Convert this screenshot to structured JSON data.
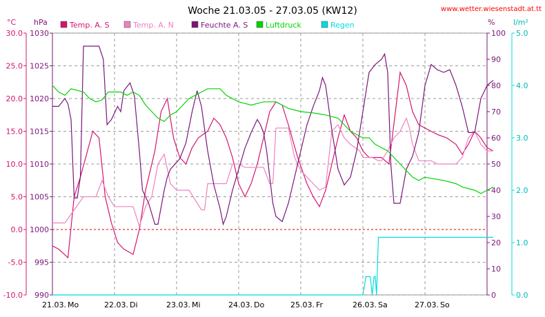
{
  "title": "Woche 21.03.05 - 27.03.05 (KW12)",
  "source_url": "www.wetter.wiesenstadt.at.tt",
  "colors": {
    "temp_s": "#d4146e",
    "temp_n": "#f080c0",
    "humidity": "#7a167a",
    "pressure": "#00d400",
    "rain": "#00dcdc",
    "grid": "#999999",
    "zero": "#cc0000"
  },
  "chart_data": {
    "type": "line",
    "x_ticks": [
      "21.03.",
      "22.03.",
      "23.03.",
      "24.03.",
      "25.03.",
      "26.03.",
      "27.03."
    ],
    "x_days": [
      "Mo",
      "Di",
      "Mi",
      "Do",
      "Fr",
      "Sa",
      "So"
    ],
    "axes": {
      "temperature": {
        "unit": "°C",
        "ylim": [
          -10,
          30
        ],
        "ticks": [
          "30.0",
          "25.0",
          "20.0",
          "15.0",
          "10.0",
          "5.0",
          "0.0",
          "-5.0",
          "-10.0"
        ]
      },
      "pressure": {
        "unit": "hPa",
        "ylim": [
          990,
          1030
        ],
        "ticks": [
          "1030",
          "1025",
          "1020",
          "1015",
          "1010",
          "1005",
          "1000",
          "995",
          "990"
        ]
      },
      "humidity": {
        "unit": "%",
        "ylim": [
          0,
          100
        ],
        "ticks": [
          "100",
          "90",
          "80",
          "70",
          "60",
          "50",
          "40",
          "30",
          "20",
          "10",
          "0"
        ]
      },
      "rain": {
        "unit": "l/m²",
        "ylim": [
          0,
          5
        ],
        "ticks": [
          "5.0",
          "4.0",
          "3.0",
          "2.0",
          "1.0",
          "0.0"
        ]
      }
    },
    "grid": true,
    "series": [
      {
        "name": "Temp. A. S",
        "key": "temp_s",
        "axis": "temperature",
        "points": [
          [
            0,
            -2.5
          ],
          [
            0.1,
            -3
          ],
          [
            0.25,
            -4.3
          ],
          [
            0.35,
            5
          ],
          [
            0.45,
            8
          ],
          [
            0.55,
            11.5
          ],
          [
            0.65,
            15
          ],
          [
            0.75,
            14
          ],
          [
            0.85,
            5
          ],
          [
            0.95,
            1
          ],
          [
            1.05,
            -2
          ],
          [
            1.15,
            -3
          ],
          [
            1.3,
            -3.8
          ],
          [
            1.4,
            0
          ],
          [
            1.5,
            6
          ],
          [
            1.65,
            12
          ],
          [
            1.75,
            18
          ],
          [
            1.85,
            20
          ],
          [
            1.95,
            14
          ],
          [
            2.05,
            11
          ],
          [
            2.15,
            10
          ],
          [
            2.25,
            12.5
          ],
          [
            2.35,
            14
          ],
          [
            2.5,
            15
          ],
          [
            2.6,
            17
          ],
          [
            2.7,
            16
          ],
          [
            2.8,
            14
          ],
          [
            2.9,
            11
          ],
          [
            3.0,
            7
          ],
          [
            3.1,
            5
          ],
          [
            3.2,
            7
          ],
          [
            3.3,
            10
          ],
          [
            3.4,
            14
          ],
          [
            3.5,
            18
          ],
          [
            3.6,
            19.5
          ],
          [
            3.7,
            19
          ],
          [
            3.8,
            16
          ],
          [
            3.95,
            11
          ],
          [
            4.1,
            7
          ],
          [
            4.2,
            5
          ],
          [
            4.3,
            3.5
          ],
          [
            4.4,
            6
          ],
          [
            4.5,
            10
          ],
          [
            4.6,
            14
          ],
          [
            4.7,
            17.5
          ],
          [
            4.8,
            15
          ],
          [
            4.9,
            14
          ],
          [
            5.0,
            12
          ],
          [
            5.1,
            11
          ],
          [
            5.2,
            11
          ],
          [
            5.3,
            11
          ],
          [
            5.42,
            10
          ],
          [
            5.55,
            20
          ],
          [
            5.6,
            24
          ],
          [
            5.7,
            22
          ],
          [
            5.8,
            18
          ],
          [
            5.9,
            16
          ],
          [
            6.0,
            15.5
          ],
          [
            6.1,
            15
          ],
          [
            6.2,
            14.5
          ],
          [
            6.35,
            14
          ],
          [
            6.5,
            13
          ],
          [
            6.6,
            11.5
          ],
          [
            6.7,
            13
          ],
          [
            6.8,
            15
          ],
          [
            6.9,
            14
          ],
          [
            7.0,
            12.5
          ],
          [
            7.1,
            12
          ]
        ]
      },
      {
        "name": "Temp. A. N",
        "key": "temp_n",
        "axis": "temperature",
        "points": [
          [
            0,
            1
          ],
          [
            0.2,
            1
          ],
          [
            0.35,
            3
          ],
          [
            0.5,
            5
          ],
          [
            0.7,
            5
          ],
          [
            0.8,
            7.5
          ],
          [
            0.9,
            5
          ],
          [
            1.0,
            3.5
          ],
          [
            1.3,
            3.5
          ],
          [
            1.4,
            0.5
          ],
          [
            1.5,
            3.5
          ],
          [
            1.6,
            5
          ],
          [
            1.7,
            10
          ],
          [
            1.8,
            11.5
          ],
          [
            1.9,
            7
          ],
          [
            2.0,
            6
          ],
          [
            2.2,
            6
          ],
          [
            2.3,
            4.5
          ],
          [
            2.4,
            3
          ],
          [
            2.45,
            3
          ],
          [
            2.5,
            7
          ],
          [
            2.8,
            7
          ],
          [
            2.9,
            10
          ],
          [
            3.0,
            10
          ],
          [
            3.1,
            9.5
          ],
          [
            3.4,
            9.5
          ],
          [
            3.5,
            7
          ],
          [
            3.55,
            7
          ],
          [
            3.6,
            15.5
          ],
          [
            3.8,
            15.5
          ],
          [
            3.9,
            11
          ],
          [
            4.0,
            9
          ],
          [
            4.2,
            7
          ],
          [
            4.3,
            6
          ],
          [
            4.4,
            6.5
          ],
          [
            4.5,
            15
          ],
          [
            4.6,
            16
          ],
          [
            4.7,
            14
          ],
          [
            4.8,
            13
          ],
          [
            4.95,
            12
          ],
          [
            5.0,
            11
          ],
          [
            5.15,
            11
          ],
          [
            5.25,
            10.5
          ],
          [
            5.3,
            10.5
          ],
          [
            5.4,
            12
          ],
          [
            5.5,
            14
          ],
          [
            5.6,
            15
          ],
          [
            5.7,
            17
          ],
          [
            5.75,
            15.5
          ],
          [
            5.8,
            13
          ],
          [
            5.9,
            10.5
          ],
          [
            6.1,
            10.5
          ],
          [
            6.2,
            10
          ],
          [
            6.5,
            10
          ],
          [
            6.6,
            11
          ],
          [
            6.7,
            14
          ],
          [
            6.8,
            15
          ],
          [
            6.9,
            13
          ],
          [
            7.0,
            12
          ],
          [
            7.1,
            12
          ]
        ]
      },
      {
        "name": "Feuchte A. S",
        "key": "humidity",
        "axis": "humidity",
        "points": [
          [
            0,
            72
          ],
          [
            0.1,
            72
          ],
          [
            0.2,
            75
          ],
          [
            0.25,
            73
          ],
          [
            0.3,
            67
          ],
          [
            0.35,
            37
          ],
          [
            0.4,
            37
          ],
          [
            0.45,
            45
          ],
          [
            0.5,
            95
          ],
          [
            0.55,
            95
          ],
          [
            0.65,
            95
          ],
          [
            0.75,
            95
          ],
          [
            0.82,
            90
          ],
          [
            0.88,
            65
          ],
          [
            0.95,
            67
          ],
          [
            1.05,
            72
          ],
          [
            1.1,
            70
          ],
          [
            1.15,
            78
          ],
          [
            1.25,
            81
          ],
          [
            1.32,
            76
          ],
          [
            1.4,
            55
          ],
          [
            1.45,
            40
          ],
          [
            1.55,
            35
          ],
          [
            1.65,
            27
          ],
          [
            1.7,
            27
          ],
          [
            1.8,
            40
          ],
          [
            1.85,
            45
          ],
          [
            1.9,
            48
          ],
          [
            2.05,
            52
          ],
          [
            2.15,
            58
          ],
          [
            2.25,
            70
          ],
          [
            2.33,
            78
          ],
          [
            2.4,
            72
          ],
          [
            2.5,
            55
          ],
          [
            2.6,
            42
          ],
          [
            2.7,
            33
          ],
          [
            2.75,
            27
          ],
          [
            2.8,
            30
          ],
          [
            2.9,
            40
          ],
          [
            3.0,
            48
          ],
          [
            3.1,
            56
          ],
          [
            3.2,
            62
          ],
          [
            3.3,
            67
          ],
          [
            3.35,
            65
          ],
          [
            3.4,
            62
          ],
          [
            3.45,
            55
          ],
          [
            3.5,
            45
          ],
          [
            3.55,
            35
          ],
          [
            3.6,
            30
          ],
          [
            3.7,
            28
          ],
          [
            3.8,
            35
          ],
          [
            3.9,
            45
          ],
          [
            4.0,
            55
          ],
          [
            4.1,
            65
          ],
          [
            4.2,
            72
          ],
          [
            4.3,
            78
          ],
          [
            4.35,
            83
          ],
          [
            4.4,
            80
          ],
          [
            4.5,
            63
          ],
          [
            4.6,
            48
          ],
          [
            4.7,
            42
          ],
          [
            4.8,
            45
          ],
          [
            4.9,
            55
          ],
          [
            5.0,
            70
          ],
          [
            5.1,
            85
          ],
          [
            5.2,
            88
          ],
          [
            5.3,
            90
          ],
          [
            5.35,
            92
          ],
          [
            5.4,
            85
          ],
          [
            5.45,
            50
          ],
          [
            5.5,
            35
          ],
          [
            5.6,
            35
          ],
          [
            5.7,
            48
          ],
          [
            5.8,
            53
          ],
          [
            5.9,
            62
          ],
          [
            6.0,
            80
          ],
          [
            6.1,
            88
          ],
          [
            6.2,
            86
          ],
          [
            6.3,
            85
          ],
          [
            6.4,
            86
          ],
          [
            6.5,
            80
          ],
          [
            6.6,
            72
          ],
          [
            6.7,
            62
          ],
          [
            6.8,
            62
          ],
          [
            6.9,
            75
          ],
          [
            7.0,
            80
          ],
          [
            7.1,
            82
          ]
        ]
      },
      {
        "name": "Luftdruck",
        "key": "pressure",
        "axis": "pressure",
        "points": [
          [
            0,
            1022
          ],
          [
            0.1,
            1021
          ],
          [
            0.2,
            1020.5
          ],
          [
            0.3,
            1021.5
          ],
          [
            0.5,
            1021
          ],
          [
            0.6,
            1020
          ],
          [
            0.7,
            1019.5
          ],
          [
            0.8,
            1019.8
          ],
          [
            0.9,
            1021
          ],
          [
            1.1,
            1021
          ],
          [
            1.2,
            1020.5
          ],
          [
            1.3,
            1021
          ],
          [
            1.4,
            1020.5
          ],
          [
            1.5,
            1019
          ],
          [
            1.6,
            1018
          ],
          [
            1.7,
            1017
          ],
          [
            1.8,
            1016.5
          ],
          [
            1.9,
            1017.5
          ],
          [
            2.0,
            1018
          ],
          [
            2.1,
            1019
          ],
          [
            2.2,
            1020
          ],
          [
            2.3,
            1020.5
          ],
          [
            2.4,
            1021
          ],
          [
            2.5,
            1021.5
          ],
          [
            2.7,
            1021.5
          ],
          [
            2.8,
            1020.5
          ],
          [
            3.0,
            1019.5
          ],
          [
            3.2,
            1019
          ],
          [
            3.4,
            1019.5
          ],
          [
            3.6,
            1019.5
          ],
          [
            3.7,
            1019
          ],
          [
            3.8,
            1018.5
          ],
          [
            4.0,
            1018
          ],
          [
            4.2,
            1017.8
          ],
          [
            4.4,
            1017.5
          ],
          [
            4.6,
            1017
          ],
          [
            4.7,
            1016
          ],
          [
            4.8,
            1015
          ],
          [
            5.0,
            1014
          ],
          [
            5.1,
            1014
          ],
          [
            5.2,
            1013
          ],
          [
            5.4,
            1012
          ],
          [
            5.5,
            1011
          ],
          [
            5.6,
            1010
          ],
          [
            5.7,
            1009
          ],
          [
            5.8,
            1008
          ],
          [
            5.9,
            1007.5
          ],
          [
            6.0,
            1008
          ],
          [
            6.1,
            1007.8
          ],
          [
            6.3,
            1007.5
          ],
          [
            6.5,
            1007
          ],
          [
            6.6,
            1006.5
          ],
          [
            6.8,
            1006
          ],
          [
            6.9,
            1005.5
          ],
          [
            7.0,
            1006
          ],
          [
            7.1,
            1006.5
          ]
        ]
      },
      {
        "name": "Regen",
        "key": "rain",
        "axis": "rain",
        "points": [
          [
            0,
            0
          ],
          [
            5.0,
            0
          ],
          [
            5.05,
            0.35
          ],
          [
            5.12,
            0.35
          ],
          [
            5.15,
            0
          ],
          [
            5.18,
            0.35
          ],
          [
            5.2,
            0.35
          ],
          [
            5.22,
            0
          ],
          [
            5.25,
            1.1
          ],
          [
            5.28,
            1.1
          ],
          [
            7.1,
            1.1
          ]
        ]
      }
    ]
  }
}
